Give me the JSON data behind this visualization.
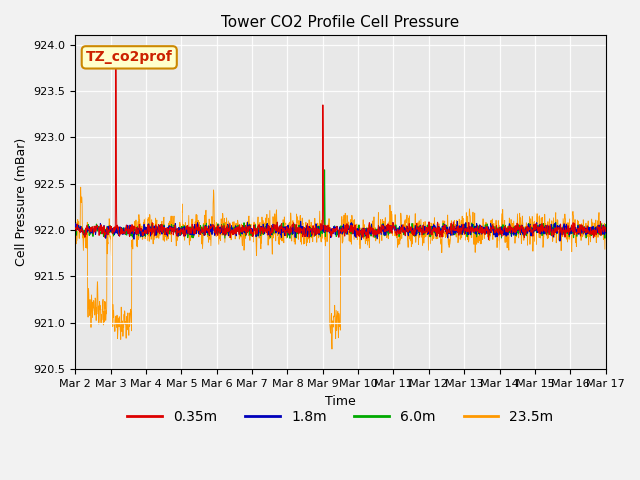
{
  "title": "Tower CO2 Profile Cell Pressure",
  "ylabel": "Cell Pressure (mBar)",
  "xlabel": "Time",
  "legend_label": "TZ_co2prof",
  "series_labels": [
    "0.35m",
    "1.8m",
    "6.0m",
    "23.5m"
  ],
  "series_colors": [
    "#dd0000",
    "#0000bb",
    "#00aa00",
    "#ff9900"
  ],
  "ylim": [
    920.5,
    924.1
  ],
  "yticks": [
    920.5,
    921.0,
    921.5,
    922.0,
    922.5,
    923.0,
    923.5,
    924.0
  ],
  "start_day": 2,
  "end_day": 17,
  "n_points": 2160,
  "base_pressure": 922.0,
  "fig_facecolor": "#f2f2f2",
  "plot_bg_color": "#e8e8e8",
  "title_fontsize": 11,
  "axis_fontsize": 9,
  "legend_fontsize": 9,
  "tick_fontsize": 8
}
